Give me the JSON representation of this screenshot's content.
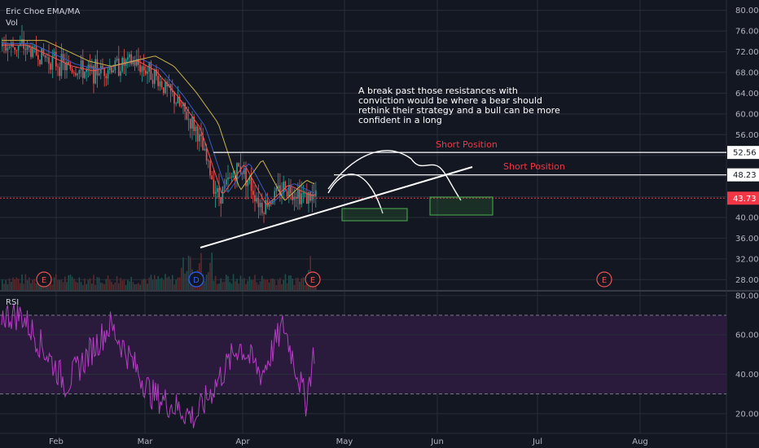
{
  "header": {
    "title": "Eric Choe EMA/MA",
    "vol_label": "Vol",
    "rsi_label": "RSI"
  },
  "annotations": {
    "note": "A break past those resistances with conviction would be where a bear should rethink their strategy and a bull can be more confident in a long",
    "short_position_1": "Short Position",
    "short_position_2": "Short Position",
    "earnings_marker": "E",
    "dividend_marker": "D"
  },
  "colors": {
    "background": "#131722",
    "grid": "#2a2e39",
    "up": "#26a69a",
    "down": "#ef5350",
    "rsi_line": "#b73cc5",
    "rsi_band": "#2a1b3d",
    "ema_yellow": "#c9b34a",
    "ema_red": "#ef5350",
    "ema_blue": "#3b5bc4",
    "current_price": "#f23645"
  },
  "chart_data": {
    "type": "candlestick",
    "title": "Eric Choe EMA/MA",
    "price_axis": {
      "min": 26,
      "max": 82,
      "ticks": [
        "28.00",
        "32.00",
        "36.00",
        "40.00",
        "44.00",
        "48.00",
        "52.00",
        "56.00",
        "60.00",
        "64.00",
        "68.00",
        "72.00",
        "76.00",
        "80.00"
      ]
    },
    "rsi_axis": {
      "min": 10,
      "max": 82,
      "ticks": [
        "20.00",
        "40.00",
        "60.00",
        "80.00"
      ],
      "overbought": 70,
      "oversold": 30
    },
    "x_axis": {
      "labels": [
        "Feb",
        "Mar",
        "Apr",
        "May",
        "Jun",
        "Jul",
        "Aug"
      ]
    },
    "price_levels": {
      "current": "43.73",
      "resistance_1": "52.56",
      "resistance_2": "48.23"
    },
    "price_path": [
      [
        "Jan 20",
        73
      ],
      [
        "Jan 27",
        71
      ],
      [
        "Feb 3",
        69
      ],
      [
        "Feb 10",
        68
      ],
      [
        "Feb 17",
        69
      ],
      [
        "Feb 24",
        70
      ],
      [
        "Mar 2",
        68
      ],
      [
        "Mar 9",
        63
      ],
      [
        "Mar 16",
        57
      ],
      [
        "Mar 23",
        44
      ],
      [
        "Mar 30",
        50
      ],
      [
        "Apr 6",
        42
      ],
      [
        "Apr 13",
        46
      ],
      [
        "Apr 20",
        44
      ],
      [
        "Apr 23",
        43.73
      ]
    ],
    "rsi_path": [
      [
        "Jan 20",
        70
      ],
      [
        "Feb 3",
        35
      ],
      [
        "Feb 17",
        65
      ],
      [
        "Mar 2",
        30
      ],
      [
        "Mar 16",
        18
      ],
      [
        "Mar 30",
        55
      ],
      [
        "Apr 6",
        40
      ],
      [
        "Apr 13",
        65
      ],
      [
        "Apr 20",
        26
      ],
      [
        "Apr 23",
        55
      ]
    ],
    "earnings_dates": [
      "Jan 23",
      "Apr 21",
      "Jul 20"
    ],
    "dividend_dates": [
      "Mar 16"
    ]
  }
}
